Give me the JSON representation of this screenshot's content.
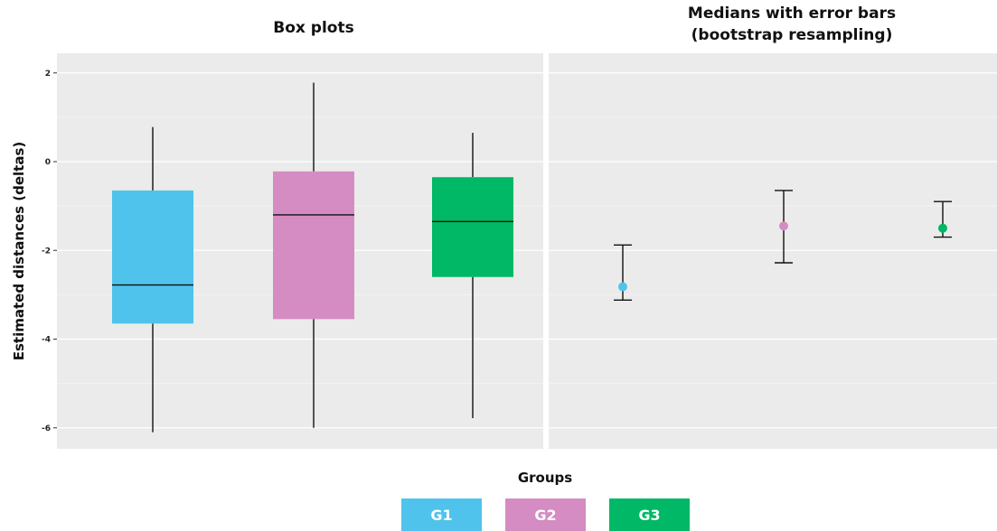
{
  "chart_data": [
    {
      "type": "box",
      "title": "Box plots",
      "ylabel": "Estimated distances (deltas)",
      "xlabel": "Groups",
      "ylim": [
        -6.2,
        2.5
      ],
      "yticks": [
        "2",
        "0",
        "-2",
        "-4",
        "-6"
      ],
      "groups": [
        {
          "name": "G1",
          "color": "#4FC3EC",
          "whisker_low": -6.1,
          "q1": -3.65,
          "median": -2.78,
          "q3": -0.65,
          "whisker_high": 0.78
        },
        {
          "name": "G2",
          "color": "#D58CC2",
          "whisker_low": -6.0,
          "q1": -3.55,
          "median": -1.2,
          "q3": -0.22,
          "whisker_high": 1.78
        },
        {
          "name": "G3",
          "color": "#00B865",
          "whisker_low": -5.78,
          "q1": -2.6,
          "median": -1.35,
          "q3": -0.35,
          "whisker_high": 0.65
        }
      ],
      "grid": true
    },
    {
      "type": "errorbar",
      "title": "Medians with error bars (bootstrap resampling)",
      "title_lines": [
        "Medians with error bars",
        "(bootstrap resampling)"
      ],
      "groups": [
        {
          "name": "G1",
          "color": "#4FC3EC",
          "median": -2.82,
          "low": -3.12,
          "high": -1.88
        },
        {
          "name": "G2",
          "color": "#D58CC2",
          "median": -1.45,
          "low": -2.28,
          "high": -0.65
        },
        {
          "name": "G3",
          "color": "#00B865",
          "median": -1.5,
          "low": -1.7,
          "high": -0.9
        }
      ],
      "grid": true
    }
  ],
  "legend": {
    "placement": "bottom",
    "title": "Groups",
    "items": [
      {
        "label": "G1",
        "color": "#4FC3EC"
      },
      {
        "label": "G2",
        "color": "#D58CC2"
      },
      {
        "label": "G3",
        "color": "#00B865"
      }
    ]
  }
}
